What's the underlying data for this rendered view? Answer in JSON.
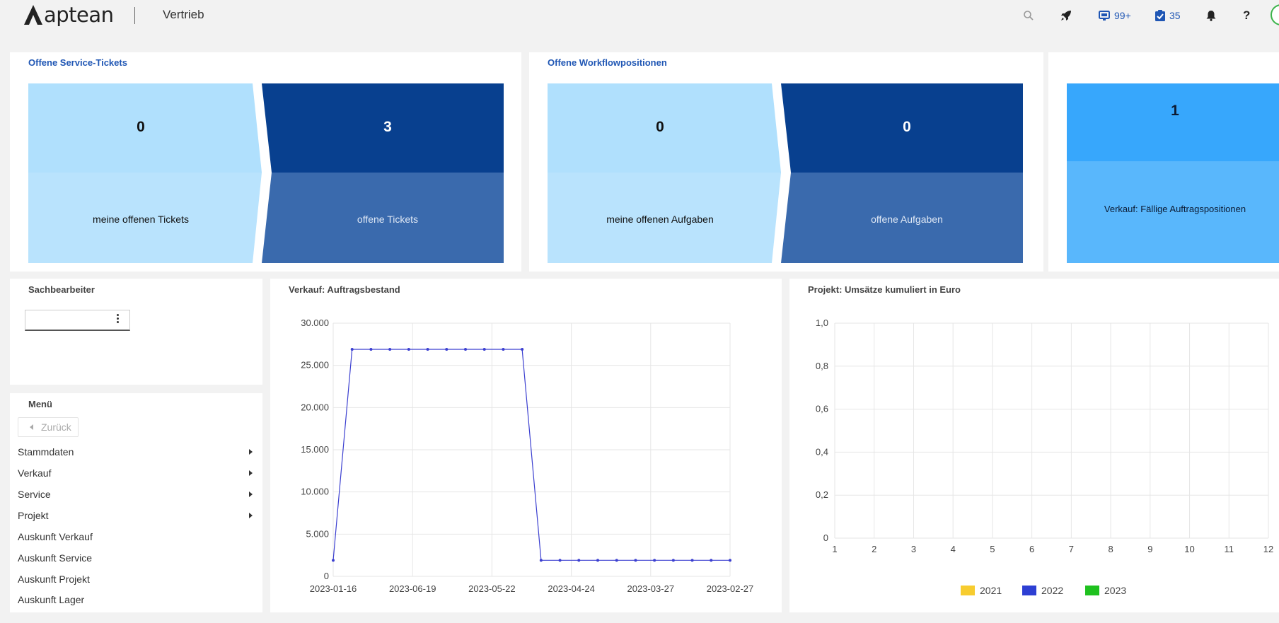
{
  "header": {
    "brand": "aptean",
    "app_title": "Vertrieb",
    "icons": [
      "search-icon",
      "rocket-icon",
      "inbox-icon",
      "tasks-icon",
      "bell-icon",
      "help-icon"
    ],
    "inbox_count": "99+",
    "tasks_count": "35",
    "help_label": "?"
  },
  "service_tickets": {
    "title": "Offene Service-Tickets",
    "my_count": "0",
    "my_label": "meine offenen Tickets",
    "all_count": "3",
    "all_label": "offene Tickets"
  },
  "workflow": {
    "title": "Offene Workflowpositionen",
    "my_count": "0",
    "my_label": "meine offenen Aufgaben",
    "all_count": "0",
    "all_label": "offene Aufgaben"
  },
  "due_orders": {
    "count": "1",
    "label": "Verkauf: Fällige Auftragspositionen"
  },
  "sachbearbeiter": {
    "title": "Sachbearbeiter",
    "value": ""
  },
  "menu": {
    "title": "Menü",
    "back_label": "Zurück",
    "items": [
      {
        "label": "Stammdaten",
        "submenu": true
      },
      {
        "label": "Verkauf",
        "submenu": true
      },
      {
        "label": "Service",
        "submenu": true
      },
      {
        "label": "Projekt",
        "submenu": true
      },
      {
        "label": "Auskunft Verkauf",
        "submenu": false
      },
      {
        "label": "Auskunft Service",
        "submenu": false
      },
      {
        "label": "Auskunft Projekt",
        "submenu": false
      },
      {
        "label": "Auskunft Lager",
        "submenu": false
      }
    ]
  },
  "colors": {
    "accent": "#1f56b4",
    "tile_light": "#b0e0fd",
    "tile_dark": "#08408f",
    "tile_mid": "#3a6aad",
    "due_top": "#37a7fc",
    "due_bottom": "#59b7fc",
    "line": "#3b3fd0"
  },
  "chart_data": [
    {
      "type": "line",
      "title": "Verkauf: Auftragsbestand",
      "x_ticks": [
        "2023-01-16",
        "2023-06-19",
        "2023-05-22",
        "2023-04-24",
        "2023-03-27",
        "2023-02-27"
      ],
      "y_ticks": [
        "0",
        "5.000",
        "10.000",
        "15.000",
        "20.000",
        "25.000",
        "30.000"
      ],
      "ylim": [
        0,
        30000
      ],
      "grid": true,
      "series": [
        {
          "values": [
            1900,
            26900,
            26900,
            26900,
            26900,
            26900,
            26900,
            26900,
            26900,
            26900,
            26900,
            1900,
            1900,
            1900,
            1900,
            1900,
            1900,
            1900,
            1900,
            1900,
            1900,
            1900
          ]
        }
      ]
    },
    {
      "type": "bar",
      "title": "Projekt: Umsätze kumuliert in Euro",
      "x_ticks": [
        "1",
        "2",
        "3",
        "4",
        "5",
        "6",
        "7",
        "8",
        "9",
        "10",
        "11",
        "12"
      ],
      "y_ticks": [
        "0",
        "0,2",
        "0,4",
        "0,6",
        "0,8",
        "1,0"
      ],
      "ylim": [
        0,
        1
      ],
      "grid": true,
      "legend_position": "bottom",
      "series": [
        {
          "name": "2021",
          "color": "#f7cc2f",
          "values": []
        },
        {
          "name": "2022",
          "color": "#2d3fd3",
          "values": []
        },
        {
          "name": "2023",
          "color": "#1fc11f",
          "values": []
        }
      ]
    }
  ]
}
